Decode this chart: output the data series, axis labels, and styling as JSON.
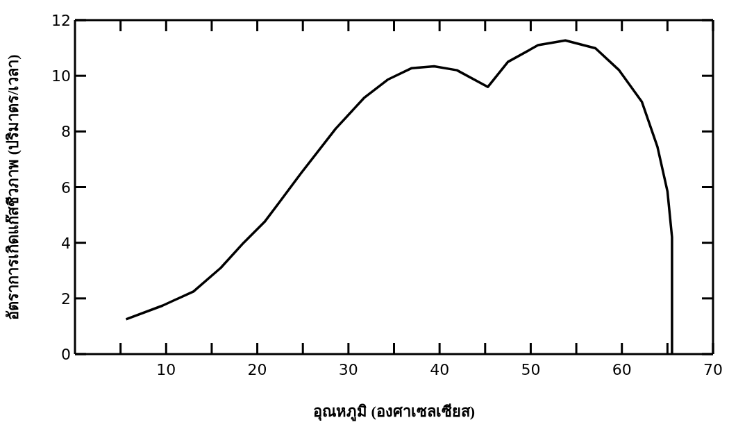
{
  "chart_data": {
    "type": "line",
    "xlabel": "อุณหภูมิ (องศาเซลเซียส)",
    "ylabel": "อัตราการเกิดแก๊สชีวภาพ (ปริมาตร/เวลา)",
    "x": [
      5.6,
      9.6,
      13,
      16,
      18.5,
      20.8,
      22.3,
      24.8,
      28.6,
      31.7,
      34.3,
      36.9,
      39.4,
      41.9,
      45.3,
      47.5,
      50.8,
      53.8,
      57.1,
      59.7,
      62.2,
      63.9,
      65,
      65.5,
      65.5
    ],
    "series": [
      {
        "color": "#000000",
        "values": [
          1.25,
          1.74,
          2.25,
          3.1,
          4.0,
          4.75,
          5.4,
          6.5,
          8.1,
          9.2,
          9.86,
          10.27,
          10.34,
          10.2,
          9.6,
          10.5,
          11.1,
          11.27,
          10.99,
          10.2,
          9.06,
          7.45,
          5.85,
          4.2,
          0
        ]
      }
    ],
    "xlim": [
      0,
      70
    ],
    "ylim": [
      0,
      12
    ],
    "xticks": [
      {
        "value": 5,
        "label": null
      },
      10,
      {
        "value": 15,
        "label": null
      },
      20,
      {
        "value": 25,
        "label": null
      },
      30,
      {
        "value": 35,
        "label": null
      },
      40,
      {
        "value": 45,
        "label": null
      },
      50,
      {
        "value": 55,
        "label": null
      },
      60,
      {
        "value": 65,
        "label": null
      },
      70
    ],
    "yticks": [
      0,
      2,
      4,
      6,
      8,
      10,
      12
    ],
    "grid": false,
    "legend": false,
    "marker": "none",
    "line_style": "solid"
  }
}
